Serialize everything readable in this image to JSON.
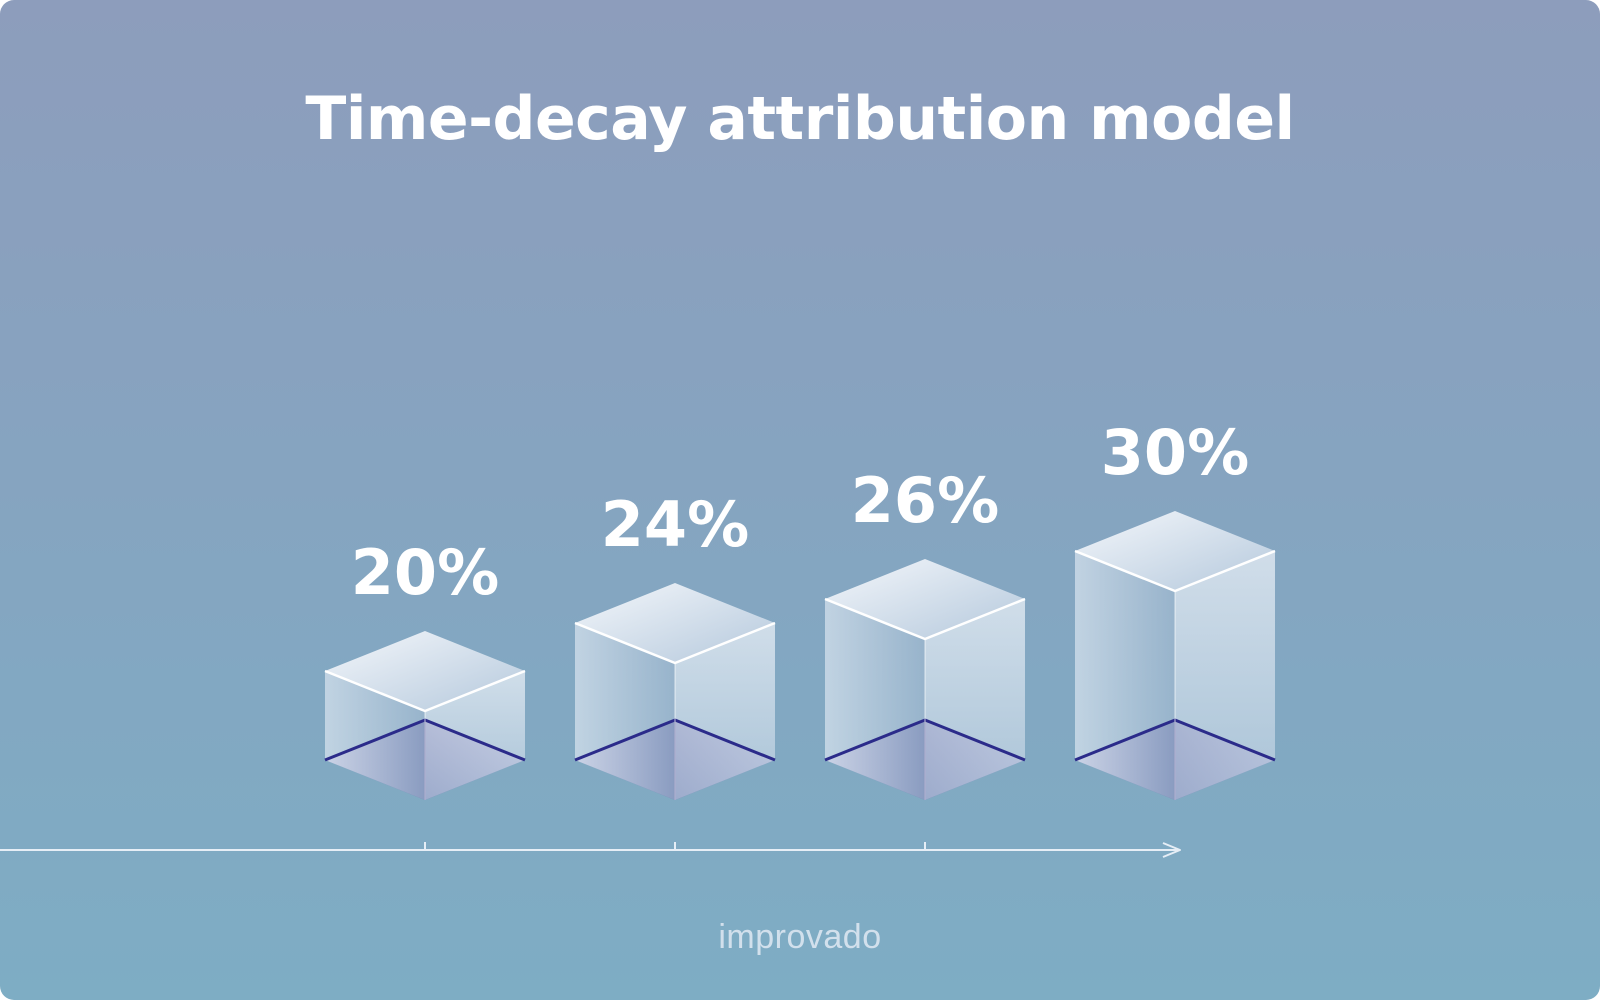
{
  "title": "Time-decay attribution model",
  "brand": "improvado",
  "colors": {
    "background_top": "#8d9dbc",
    "background_bottom": "#7eadc4",
    "bar_glass": "#dfe8f2",
    "bar_base": "#5a5a9e",
    "bar_base_edge": "#2b2b8a",
    "axis": "#e6eef6",
    "text": "#ffffff"
  },
  "chart_data": {
    "type": "bar",
    "style": "3d-isometric",
    "title": "Time-decay attribution model",
    "xlabel": "",
    "ylabel": "",
    "grid": false,
    "values": [
      20,
      24,
      26,
      30
    ],
    "labels": [
      "20%",
      "24%",
      "26%",
      "30%"
    ],
    "unit": "%",
    "x_axis_arrow": true,
    "x_axis_ticks": 3
  }
}
